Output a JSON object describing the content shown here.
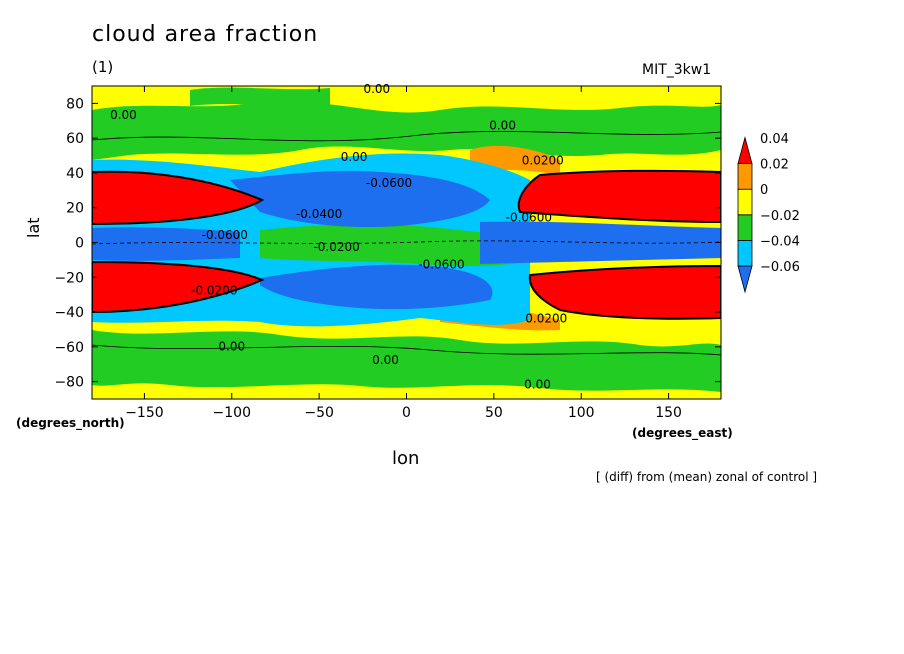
{
  "title": "cloud area fraction",
  "subtitle": "(1)",
  "model_label": "MIT_3kw1",
  "x_unit_left": "(degrees_north)",
  "x_unit_right": "(degrees_east)",
  "footnote": "[ (diff) from (mean) zonal of control ]",
  "chart_data": {
    "type": "heatmap",
    "title": "cloud area fraction",
    "subtitle": "(1)",
    "xlabel": "lon",
    "ylabel": "lat",
    "xlim": [
      -180,
      180
    ],
    "ylim": [
      -90,
      90
    ],
    "x_ticks": [
      -150,
      -100,
      -50,
      0,
      50,
      100,
      150
    ],
    "x_tick_labels": [
      "−150",
      "−100",
      "−50",
      "0",
      "50",
      "100",
      "150"
    ],
    "y_ticks": [
      80,
      60,
      40,
      20,
      0,
      -20,
      -40,
      -60,
      -80
    ],
    "y_tick_labels": [
      "80",
      "60",
      "40",
      "20",
      "0",
      "−20",
      "−40",
      "−60",
      "−80"
    ],
    "colorbar": {
      "levels": [
        -0.06,
        -0.04,
        -0.02,
        0,
        0.02,
        0.04
      ],
      "labels": [
        "−0.06",
        "−0.04",
        "−0.02",
        "0",
        "0.02",
        "0.04"
      ],
      "colors": [
        "#1e6ef0",
        "#00c8ff",
        "#22cc22",
        "#ffff00",
        "#ff9900",
        "#ff0000"
      ]
    },
    "contour_labels": [
      {
        "lon": -162,
        "lat": 71,
        "text": "0.00"
      },
      {
        "lon": -17,
        "lat": 86,
        "text": "0.00"
      },
      {
        "lon": 55,
        "lat": 65,
        "text": "0.00"
      },
      {
        "lon": -30,
        "lat": 47,
        "text": "0.00"
      },
      {
        "lon": 78,
        "lat": 45,
        "text": "0.0200"
      },
      {
        "lon": -10,
        "lat": 32,
        "text": "-0.0600"
      },
      {
        "lon": -50,
        "lat": 14,
        "text": "-0.0400"
      },
      {
        "lon": 70,
        "lat": 12,
        "text": "-0.0600"
      },
      {
        "lon": -104,
        "lat": 2,
        "text": "-0.0600"
      },
      {
        "lon": -40,
        "lat": -5,
        "text": "-0.0200"
      },
      {
        "lon": 20,
        "lat": -15,
        "text": "-0.0600"
      },
      {
        "lon": -110,
        "lat": -30,
        "text": "-0.0200"
      },
      {
        "lon": 80,
        "lat": -46,
        "text": "0.0200"
      },
      {
        "lon": -100,
        "lat": -62,
        "text": "0.00"
      },
      {
        "lon": -12,
        "lat": -70,
        "text": "0.00"
      },
      {
        "lon": 75,
        "lat": -84,
        "text": "0.00"
      }
    ]
  }
}
